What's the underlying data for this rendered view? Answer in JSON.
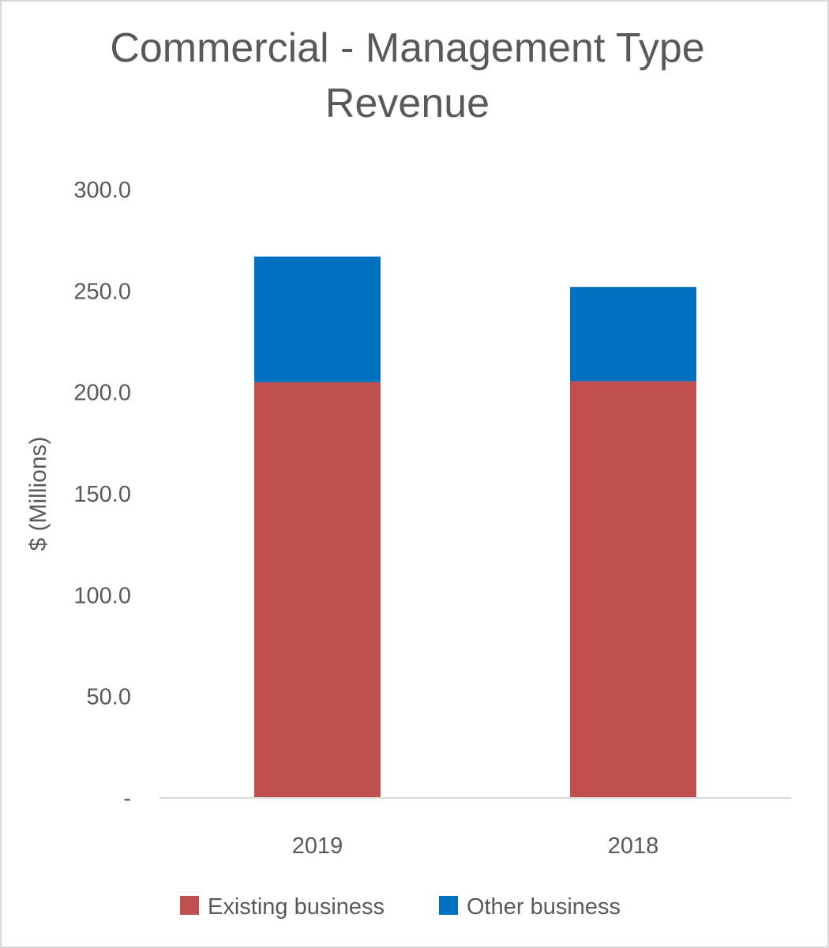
{
  "chart_data": {
    "type": "bar",
    "stacked": true,
    "title_lines": [
      "Commercial - Management Type",
      "Revenue"
    ],
    "xlabel": "",
    "ylabel": "$ (Millions)",
    "categories": [
      "2019",
      "2018"
    ],
    "series": [
      {
        "name": "Existing business",
        "color": "#c0504d",
        "values": [
          205.0,
          205.5
        ]
      },
      {
        "name": "Other business",
        "color": "#0070c0",
        "values": [
          62.0,
          46.5
        ]
      }
    ],
    "ylim": [
      0,
      300
    ],
    "y_ticks": [
      0,
      50,
      100,
      150,
      200,
      250,
      300
    ],
    "y_tick_labels": [
      "-",
      "50.0",
      "100.0",
      "150.0",
      "200.0",
      "250.0",
      "300.0"
    ],
    "grid": false,
    "legend_position": "bottom"
  }
}
